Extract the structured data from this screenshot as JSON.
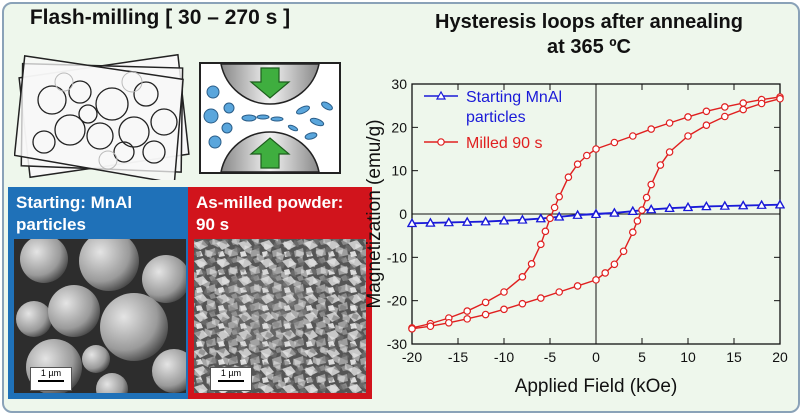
{
  "left_panel": {
    "title": "Flash-milling [ 30 – 270 s ]",
    "starting_label": "Starting: MnAl particles",
    "milled_label": "As-milled powder: 90 s",
    "scale_label": "1 µm",
    "colors": {
      "starting_box": "#1f71b8",
      "milled_box": "#d1141c"
    }
  },
  "chart_data": {
    "type": "line",
    "title": "Hysteresis loops after annealing at 365 ºC",
    "xlabel": "Applied Field (kOe)",
    "ylabel": "Magnetization (emu/g)",
    "xlim": [
      -20,
      20
    ],
    "ylim": [
      -30,
      30
    ],
    "xticks": [
      -20,
      -15,
      -10,
      -5,
      0,
      5,
      10,
      15,
      20
    ],
    "yticks": [
      -30,
      -20,
      -10,
      0,
      10,
      20,
      30
    ],
    "legend_position": "top-left",
    "series": [
      {
        "name": "Starting MnAl particles",
        "color": "#1a1ad8",
        "marker": "triangle",
        "upper_x": [
          20,
          18,
          16,
          14,
          12,
          10,
          8,
          6,
          4,
          2,
          0,
          -2,
          -4,
          -6,
          -8,
          -10,
          -12,
          -14,
          -16,
          -18,
          -20
        ],
        "upper_y": [
          2.2,
          2.1,
          2.0,
          1.9,
          1.8,
          1.6,
          1.4,
          1.1,
          0.7,
          0.3,
          0.1,
          -0.2,
          -0.6,
          -1.0,
          -1.3,
          -1.5,
          -1.7,
          -1.8,
          -1.9,
          -2.0,
          -2.1
        ],
        "lower_x": [
          -20,
          -18,
          -16,
          -14,
          -12,
          -10,
          -8,
          -6,
          -4,
          -2,
          0,
          2,
          4,
          6,
          8,
          10,
          12,
          14,
          16,
          18,
          20
        ],
        "lower_y": [
          -2.2,
          -2.1,
          -2.0,
          -1.9,
          -1.8,
          -1.6,
          -1.4,
          -1.1,
          -0.7,
          -0.3,
          -0.1,
          0.2,
          0.6,
          1.0,
          1.3,
          1.5,
          1.7,
          1.8,
          1.9,
          2.0,
          2.1
        ]
      },
      {
        "name": "Milled 90 s",
        "color": "#e02020",
        "marker": "circle",
        "upper_x": [
          20,
          18,
          16,
          14,
          12,
          10,
          8,
          6,
          4,
          2,
          0,
          -1,
          -2,
          -3,
          -4,
          -4.5,
          -5,
          -5.5,
          -6,
          -7,
          -8,
          -10,
          -12,
          -14,
          -16,
          -18,
          -20
        ],
        "upper_y": [
          27,
          26.4,
          25.6,
          24.7,
          23.7,
          22.4,
          21.0,
          19.6,
          18.0,
          16.5,
          15.0,
          13.5,
          11.5,
          8.5,
          4.0,
          1.5,
          -1.0,
          -4.0,
          -7.0,
          -11.5,
          -14.5,
          -18.0,
          -20.4,
          -22.4,
          -24.0,
          -25.3,
          -26.3
        ],
        "lower_x": [
          -20,
          -18,
          -16,
          -14,
          -12,
          -10,
          -8,
          -6,
          -4,
          -2,
          0,
          1,
          2,
          3,
          4,
          4.5,
          5,
          5.5,
          6,
          7,
          8,
          10,
          12,
          14,
          16,
          18,
          20
        ],
        "lower_y": [
          -26.5,
          -25.9,
          -25.1,
          -24.2,
          -23.2,
          -22.0,
          -20.7,
          -19.4,
          -18.0,
          -16.6,
          -15.2,
          -13.6,
          -11.6,
          -8.6,
          -4.2,
          -1.6,
          0.9,
          3.8,
          6.8,
          11.3,
          14.3,
          18.0,
          20.5,
          22.5,
          24.1,
          25.5,
          26.6
        ]
      }
    ]
  }
}
